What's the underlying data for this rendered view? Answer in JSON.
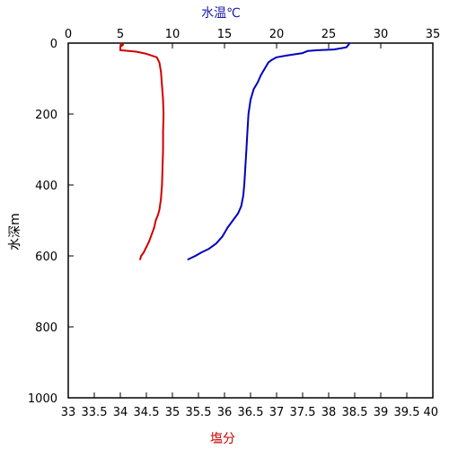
{
  "chart_data": {
    "type": "line",
    "title": "",
    "top_axis": {
      "label": "水温℃",
      "label_color": "#1a1aa8",
      "range": [
        0,
        35
      ],
      "ticks": [
        "0",
        "5",
        "10",
        "15",
        "20",
        "25",
        "30",
        "35"
      ]
    },
    "bottom_axis": {
      "label": "塩分",
      "label_color": "#cc0000",
      "range": [
        33,
        40
      ],
      "ticks": [
        "33",
        "33.5",
        "34",
        "34.5",
        "35",
        "35.5",
        "36",
        "36.5",
        "37",
        "37.5",
        "38",
        "38.5",
        "39",
        "39.5",
        "40"
      ]
    },
    "y_axis": {
      "label": "水深m",
      "range": [
        0,
        1000
      ],
      "inverted": true,
      "ticks": [
        "0",
        "200",
        "400",
        "600",
        "800",
        "1000"
      ]
    },
    "grid": false,
    "series": [
      {
        "axis": "top",
        "color": "#0000c0",
        "points": [
          [
            27.0,
            0
          ],
          [
            26.9,
            5
          ],
          [
            26.7,
            12
          ],
          [
            25.5,
            18
          ],
          [
            24.0,
            20
          ],
          [
            23.0,
            22
          ],
          [
            22.5,
            28
          ],
          [
            21.0,
            35
          ],
          [
            20.0,
            40
          ],
          [
            19.5,
            48
          ],
          [
            19.2,
            55
          ],
          [
            19.0,
            65
          ],
          [
            18.8,
            75
          ],
          [
            18.5,
            90
          ],
          [
            18.2,
            110
          ],
          [
            17.8,
            130
          ],
          [
            17.5,
            160
          ],
          [
            17.3,
            200
          ],
          [
            17.2,
            250
          ],
          [
            17.1,
            300
          ],
          [
            17.0,
            350
          ],
          [
            16.9,
            400
          ],
          [
            16.8,
            430
          ],
          [
            16.6,
            460
          ],
          [
            16.3,
            480
          ],
          [
            15.8,
            500
          ],
          [
            15.3,
            520
          ],
          [
            14.8,
            545
          ],
          [
            14.2,
            565
          ],
          [
            13.5,
            580
          ],
          [
            12.8,
            590
          ],
          [
            12.2,
            600
          ],
          [
            11.5,
            610
          ]
        ]
      },
      {
        "axis": "bottom",
        "color": "#d00000",
        "points": [
          [
            34.0,
            0
          ],
          [
            34.05,
            5
          ],
          [
            34.0,
            10
          ],
          [
            34.0,
            20
          ],
          [
            34.3,
            24
          ],
          [
            34.5,
            30
          ],
          [
            34.7,
            40
          ],
          [
            34.75,
            55
          ],
          [
            34.78,
            80
          ],
          [
            34.8,
            120
          ],
          [
            34.82,
            160
          ],
          [
            34.83,
            200
          ],
          [
            34.82,
            250
          ],
          [
            34.82,
            300
          ],
          [
            34.81,
            350
          ],
          [
            34.8,
            400
          ],
          [
            34.78,
            440
          ],
          [
            34.75,
            470
          ],
          [
            34.72,
            485
          ],
          [
            34.68,
            500
          ],
          [
            34.65,
            520
          ],
          [
            34.6,
            540
          ],
          [
            34.55,
            560
          ],
          [
            34.5,
            575
          ],
          [
            34.45,
            590
          ],
          [
            34.4,
            600
          ],
          [
            34.38,
            610
          ]
        ]
      }
    ]
  }
}
